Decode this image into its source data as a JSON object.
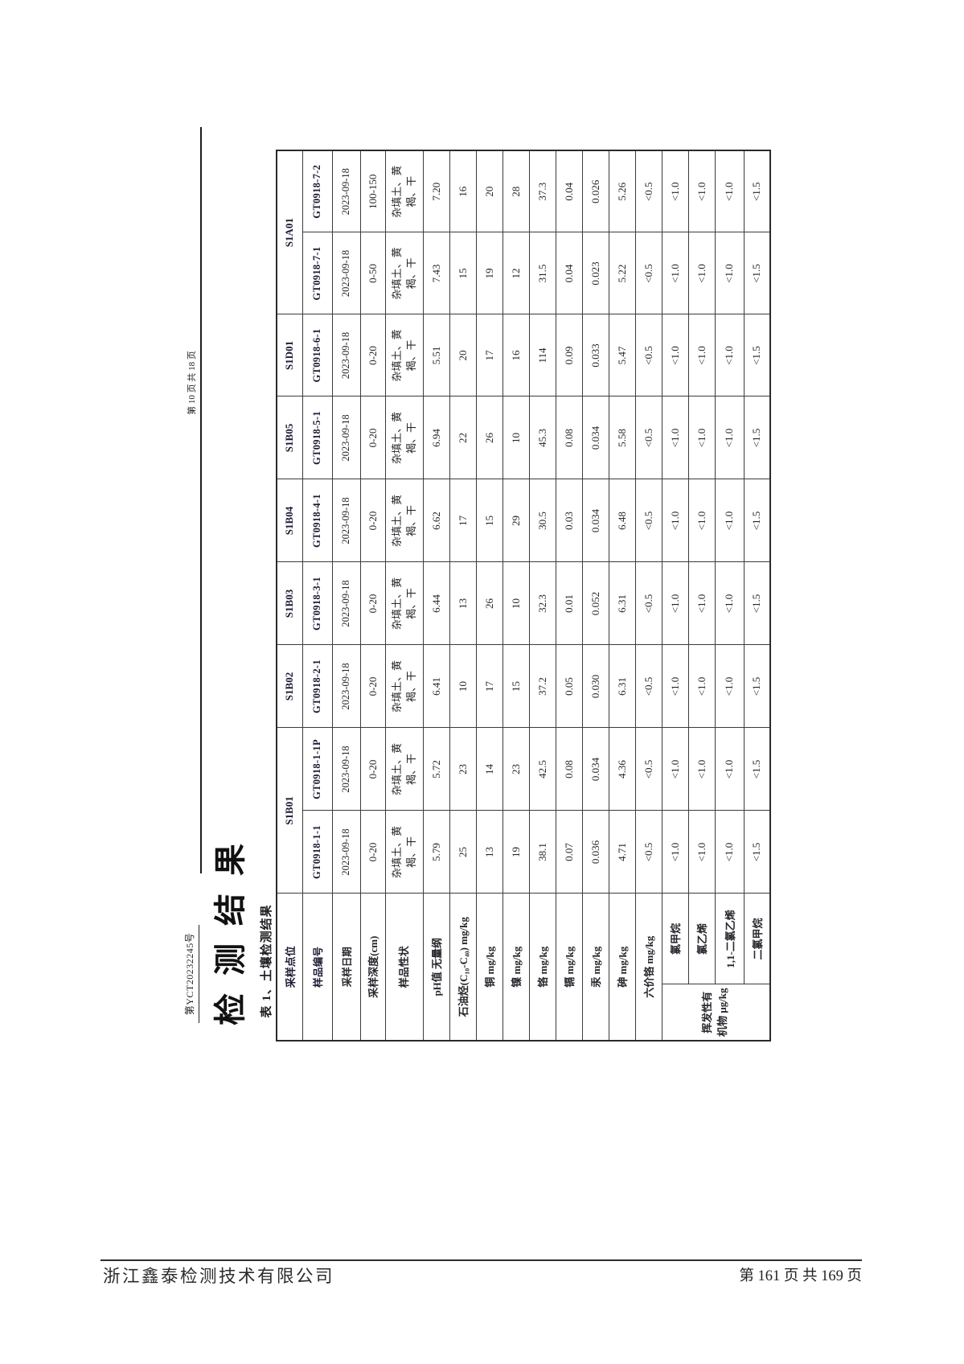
{
  "page": {
    "report_no": "第YCT20232245号",
    "header_page_info": "第 10 页 共 18 页",
    "title": "检测结果",
    "table_caption": "表 1、土壤检测结果",
    "footer": {
      "company": "浙江鑫泰检测技术有限公司",
      "page_info": "第 161 页 共 169 页"
    }
  },
  "table": {
    "row_labels": {
      "location": "采样点位",
      "sample_id": "样品编号",
      "date": "采样日期",
      "depth": "采样深度(cm)",
      "texture": "样品性状"
    },
    "locations": [
      "S1B01",
      "S1B02",
      "S1B03",
      "S1B04",
      "S1B05",
      "S1D01",
      "S1A01"
    ],
    "sample_ids": [
      "GT0918-1-1",
      "GT0918-1-1P",
      "GT0918-2-1",
      "GT0918-3-1",
      "GT0918-4-1",
      "GT0918-5-1",
      "GT0918-6-1",
      "GT0918-7-1",
      "GT0918-7-2"
    ],
    "dates": [
      "2023-09-18",
      "2023-09-18",
      "2023-09-18",
      "2023-09-18",
      "2023-09-18",
      "2023-09-18",
      "2023-09-18",
      "2023-09-18",
      "2023-09-18"
    ],
    "depths": [
      "0-20",
      "0-20",
      "0-20",
      "0-20",
      "0-20",
      "0-20",
      "0-20",
      "0-50",
      "100-150"
    ],
    "textures": [
      "杂填土、黄褐、干",
      "杂填土、黄褐、干",
      "杂填土、黄褐、干",
      "杂填土、黄褐、干",
      "杂填土、黄褐、干",
      "杂填土、黄褐、干",
      "杂填土、黄褐、干",
      "杂填土、黄褐、干",
      "杂填土、黄褐、干"
    ],
    "data_rows": [
      {
        "label": "pH值 无量纲",
        "cells": [
          "5.79",
          "5.72",
          "6.41",
          "6.44",
          "6.62",
          "6.94",
          "5.51",
          "7.43",
          "7.20"
        ]
      },
      {
        "label": "石油烃(C₁₀-C₄₀) mg/kg",
        "cells": [
          "25",
          "23",
          "10",
          "13",
          "17",
          "22",
          "20",
          "15",
          "16"
        ]
      },
      {
        "label": "铜 mg/kg",
        "cells": [
          "13",
          "14",
          "17",
          "26",
          "15",
          "26",
          "17",
          "19",
          "20"
        ]
      },
      {
        "label": "镍 mg/kg",
        "cells": [
          "19",
          "23",
          "15",
          "10",
          "29",
          "10",
          "16",
          "12",
          "28"
        ]
      },
      {
        "label": "铬 mg/kg",
        "cells": [
          "38.1",
          "42.5",
          "37.2",
          "32.3",
          "30.5",
          "45.3",
          "114",
          "31.5",
          "37.3"
        ]
      },
      {
        "label": "镉 mg/kg",
        "cells": [
          "0.07",
          "0.08",
          "0.05",
          "0.01",
          "0.03",
          "0.08",
          "0.09",
          "0.04",
          "0.04"
        ]
      },
      {
        "label": "汞 mg/kg",
        "cells": [
          "0.036",
          "0.034",
          "0.030",
          "0.052",
          "0.034",
          "0.034",
          "0.033",
          "0.023",
          "0.026"
        ]
      },
      {
        "label": "砷 mg/kg",
        "cells": [
          "4.71",
          "4.36",
          "6.31",
          "6.31",
          "6.48",
          "5.58",
          "5.47",
          "5.22",
          "5.26"
        ]
      },
      {
        "label": "六价铬 mg/kg",
        "cells": [
          "<0.5",
          "<0.5",
          "<0.5",
          "<0.5",
          "<0.5",
          "<0.5",
          "<0.5",
          "<0.5",
          "<0.5"
        ]
      }
    ],
    "voc_group": {
      "label": "挥发性有机物 μg/kg",
      "rows": [
        {
          "label": "氯甲烷",
          "cells": [
            "<1.0",
            "<1.0",
            "<1.0",
            "<1.0",
            "<1.0",
            "<1.0",
            "<1.0",
            "<1.0",
            "<1.0"
          ]
        },
        {
          "label": "氯乙烯",
          "cells": [
            "<1.0",
            "<1.0",
            "<1.0",
            "<1.0",
            "<1.0",
            "<1.0",
            "<1.0",
            "<1.0",
            "<1.0"
          ]
        },
        {
          "label": "1,1-二氯乙烯",
          "cells": [
            "<1.0",
            "<1.0",
            "<1.0",
            "<1.0",
            "<1.0",
            "<1.0",
            "<1.0",
            "<1.0",
            "<1.0"
          ]
        },
        {
          "label": "二氯甲烷",
          "cells": [
            "<1.5",
            "<1.5",
            "<1.5",
            "<1.5",
            "<1.5",
            "<1.5",
            "<1.5",
            "<1.5",
            "<1.5"
          ]
        }
      ]
    }
  }
}
